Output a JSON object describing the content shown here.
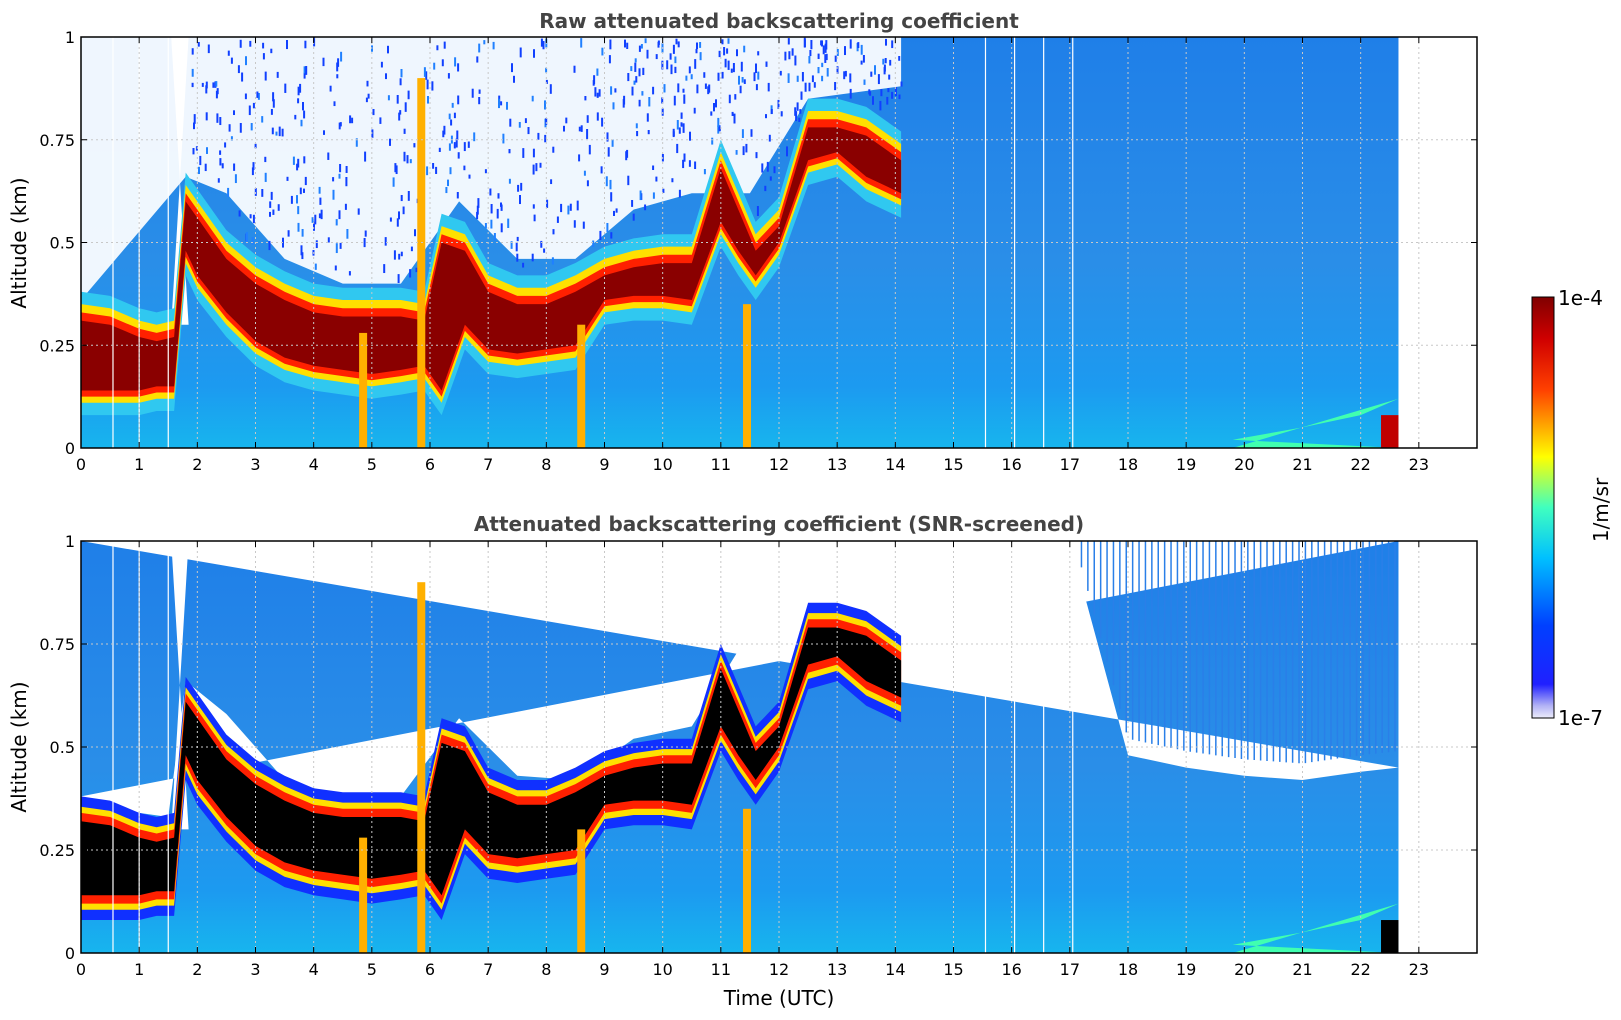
{
  "chart_data": [
    {
      "type": "heatmap",
      "title": "Raw attenuated backscattering coefficient",
      "xlabel": "",
      "ylabel": "Altitude (km)",
      "xlim": [
        0,
        24
      ],
      "ylim": [
        0,
        1
      ],
      "x_ticks": [
        "0",
        "1",
        "2",
        "3",
        "4",
        "5",
        "6",
        "7",
        "8",
        "9",
        "10",
        "11",
        "12",
        "13",
        "14",
        "15",
        "16",
        "17",
        "18",
        "19",
        "20",
        "21",
        "22",
        "23"
      ],
      "y_ticks": [
        "0",
        "0.25",
        "0.5",
        "0.75",
        "1"
      ],
      "grid": true,
      "colormap": "jet",
      "color_scale": "log",
      "data_end_time": 22.65,
      "layer_top_profile": {
        "x": [
          0,
          0.5,
          1.0,
          1.3,
          1.6,
          1.8,
          2.0,
          2.5,
          3,
          3.5,
          4,
          4.5,
          5,
          5.5,
          5.9,
          6.2,
          6.6,
          7,
          7.5,
          8,
          8.5,
          9,
          9.5,
          10,
          10.5,
          11,
          11.3,
          11.6,
          12,
          12.5,
          13,
          13.5,
          14.1
        ],
        "y": [
          0.33,
          0.32,
          0.29,
          0.28,
          0.29,
          0.62,
          0.58,
          0.48,
          0.42,
          0.38,
          0.35,
          0.34,
          0.34,
          0.34,
          0.33,
          0.52,
          0.5,
          0.4,
          0.37,
          0.37,
          0.4,
          0.44,
          0.46,
          0.47,
          0.47,
          0.7,
          0.6,
          0.5,
          0.56,
          0.8,
          0.8,
          0.78,
          0.72
        ]
      },
      "layer_bottom_profile": {
        "x": [
          0,
          0.5,
          1.0,
          1.3,
          1.6,
          1.8,
          2.0,
          2.5,
          3,
          3.5,
          4,
          4.5,
          5,
          5.5,
          5.9,
          6.2,
          6.6,
          7,
          7.5,
          8,
          8.5,
          9,
          9.5,
          10,
          10.5,
          11,
          11.3,
          11.6,
          12,
          12.5,
          13,
          13.5,
          14.1
        ],
        "y": [
          0.14,
          0.14,
          0.14,
          0.15,
          0.15,
          0.48,
          0.42,
          0.33,
          0.26,
          0.22,
          0.2,
          0.19,
          0.18,
          0.19,
          0.2,
          0.14,
          0.3,
          0.24,
          0.23,
          0.24,
          0.25,
          0.36,
          0.37,
          0.37,
          0.36,
          0.55,
          0.48,
          0.42,
          0.5,
          0.7,
          0.72,
          0.66,
          0.62
        ]
      }
    },
    {
      "type": "heatmap",
      "title": "Attenuated backscattering coefficient (SNR-screened)",
      "xlabel": "Time (UTC)",
      "ylabel": "Altitude (km)",
      "xlim": [
        0,
        24
      ],
      "ylim": [
        0,
        1
      ],
      "x_ticks": [
        "0",
        "1",
        "2",
        "3",
        "4",
        "5",
        "6",
        "7",
        "8",
        "9",
        "10",
        "11",
        "12",
        "13",
        "14",
        "15",
        "16",
        "17",
        "18",
        "19",
        "20",
        "21",
        "22",
        "23"
      ],
      "y_ticks": [
        "0",
        "0.25",
        "0.5",
        "0.75",
        "1"
      ],
      "grid": true,
      "colormap": "jet",
      "color_scale": "log",
      "data_end_time": 22.65,
      "screening_top_profile": {
        "x": [
          0,
          0.5,
          1,
          1.5,
          1.8,
          2.5,
          3.5,
          4.5,
          5.5,
          6.5,
          7.5,
          8.5,
          9.5,
          10.5,
          11.5,
          12.5,
          13.5,
          14.1,
          17,
          18,
          19,
          20,
          21,
          22,
          22.65
        ],
        "y": [
          0.38,
          0.36,
          0.34,
          0.33,
          0.66,
          0.58,
          0.42,
          0.38,
          0.38,
          0.57,
          0.43,
          0.42,
          0.52,
          0.55,
          0.78,
          0.88,
          0.92,
          1.0,
          1.0,
          0.48,
          0.45,
          0.43,
          0.42,
          0.44,
          0.45
        ]
      }
    }
  ],
  "colorbar": {
    "max_label": "1e-4",
    "min_label": "1e-7",
    "unit_label": "1/m/sr"
  },
  "colors": {
    "jet_dark_red": "#800000",
    "jet_red": "#ff0000",
    "jet_yellow": "#ffff00",
    "jet_cyan": "#00ffff",
    "jet_blue": "#0000ff",
    "jet_dark_blue": "#00008f",
    "background_blue": "#2f8fe6",
    "grid": "#c8c8c8"
  }
}
